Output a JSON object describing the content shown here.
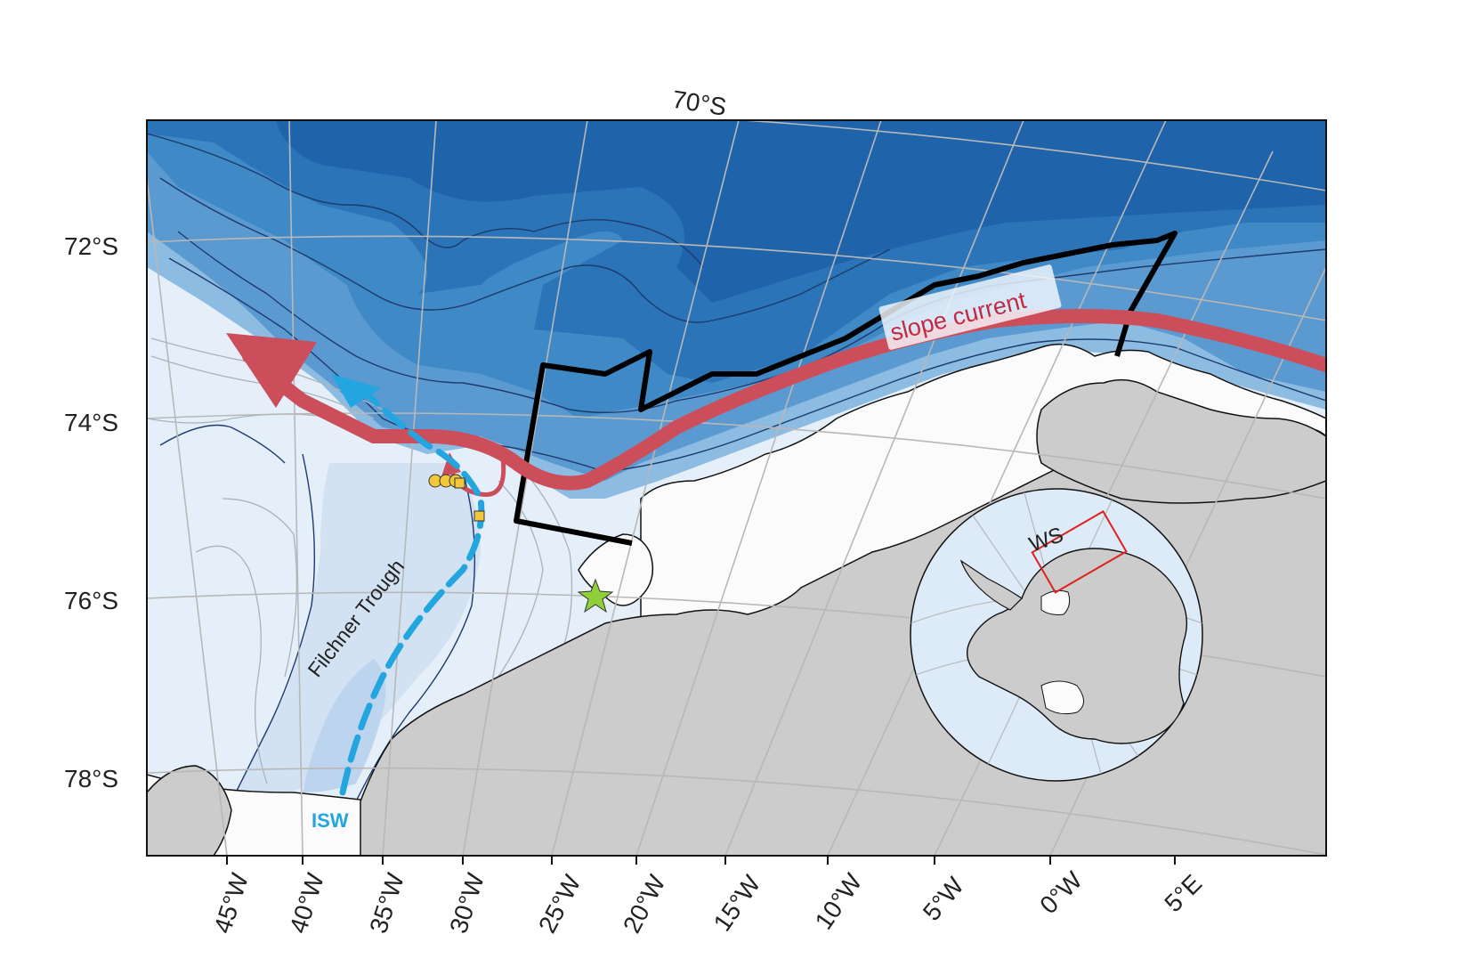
{
  "map": {
    "region": "Weddell Sea continental shelf and slope",
    "top_latitude_label": "70°S",
    "latitude_labels": [
      "72°S",
      "74°S",
      "76°S",
      "78°S"
    ],
    "longitude_labels": [
      "45°W",
      "40°W",
      "35°W",
      "30°W",
      "25°W",
      "20°W",
      "15°W",
      "10°W",
      "5°W",
      "0°W",
      "5°E"
    ],
    "colors": {
      "deep_ocean": "#1f64aa",
      "ocean_mid": "#3c86c3",
      "ocean_shallow": "#6ea8d8",
      "slope": "#a9cbe7",
      "shelf": "#e7f0fa",
      "ice_shelf": "#fbfbfb",
      "land": "#cccccc",
      "slope_current": "#cd4e5b",
      "isw_flow": "#23a5df",
      "study_box": "#000000",
      "mooring_marker": "#f2c83a",
      "station_marker": "#8fcf3a",
      "inset_box": "#e0201f"
    },
    "annotations": {
      "slope_current": "slope current",
      "trough": "Filchner Trough",
      "isw": "ISW"
    },
    "inset": {
      "label": "WS",
      "description_icon": "antarctica-inset-map"
    },
    "markers": {
      "circles": 3,
      "squares": 2,
      "stars": 1
    }
  }
}
